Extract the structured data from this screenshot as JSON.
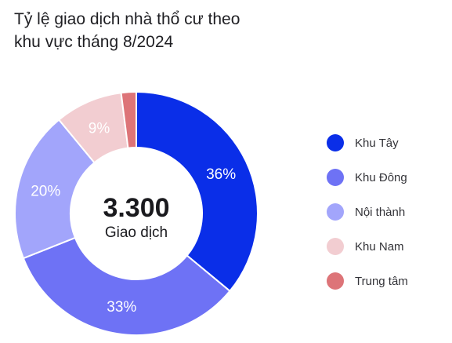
{
  "title_lines": [
    "Tỷ lệ giao dịch nhà thổ cư theo",
    "khu vực tháng 8/2024"
  ],
  "center": {
    "value": "3.300",
    "label": "Giao dịch"
  },
  "chart_data": {
    "type": "pie",
    "title": "Tỷ lệ giao dịch nhà thổ cư theo khu vực tháng 8/2024",
    "total": 3300,
    "total_label": "Giao dịch",
    "legend_position": "right",
    "categories": [
      "Khu Tây",
      "Khu Đông",
      "Nội thành",
      "Khu Nam",
      "Trung tâm"
    ],
    "values": [
      36,
      33,
      20,
      9,
      2
    ],
    "value_labels": [
      "36%",
      "33%",
      "20%",
      "9%",
      ""
    ],
    "colors": [
      "#0a2ee8",
      "#6e72f5",
      "#a2a5fb",
      "#f2cdd1",
      "#dd7478"
    ],
    "label_colors": [
      "#ffffff",
      "#ffffff",
      "#ffffff",
      "#ffffff",
      "#ffffff"
    ]
  }
}
